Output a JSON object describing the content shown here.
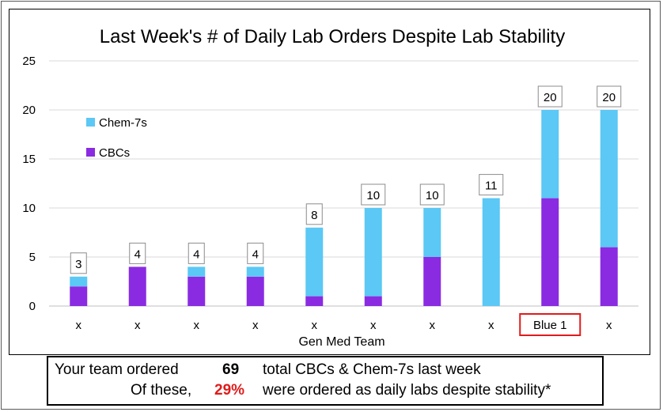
{
  "chart_data": {
    "type": "bar",
    "stacked": true,
    "title": "Last Week's # of Daily Lab Orders Despite Lab Stability",
    "xlabel": "Gen Med Team",
    "ylabel": "",
    "ylim": [
      0,
      25
    ],
    "yticks": [
      0,
      5,
      10,
      15,
      20,
      25
    ],
    "grid": true,
    "legend_position": "upper-left",
    "categories": [
      "x",
      "x",
      "x",
      "x",
      "x",
      "x",
      "x",
      "x",
      "Blue 1",
      "x"
    ],
    "highlighted_category_index": 8,
    "series": [
      {
        "name": "CBCs",
        "color": "#8a2be2",
        "values": [
          2,
          4,
          3,
          3,
          1,
          1,
          5,
          0,
          11,
          6
        ]
      },
      {
        "name": "Chem-7s",
        "color": "#5bc8f5",
        "values": [
          1,
          0,
          1,
          1,
          7,
          9,
          5,
          11,
          9,
          14
        ]
      }
    ],
    "totals": [
      3,
      4,
      4,
      4,
      8,
      10,
      10,
      11,
      20,
      20
    ]
  },
  "summary": {
    "line1_prefix": "Your team ordered",
    "line1_value": "69",
    "line1_suffix": "total CBCs & Chem-7s last week",
    "line2_prefix": "Of these,",
    "line2_value": "29%",
    "line2_suffix": "were ordered as daily labs despite stability*"
  },
  "colors": {
    "highlight_border": "#e01b1b",
    "gridline": "#d9d9d9",
    "axis_text": "#000000"
  }
}
